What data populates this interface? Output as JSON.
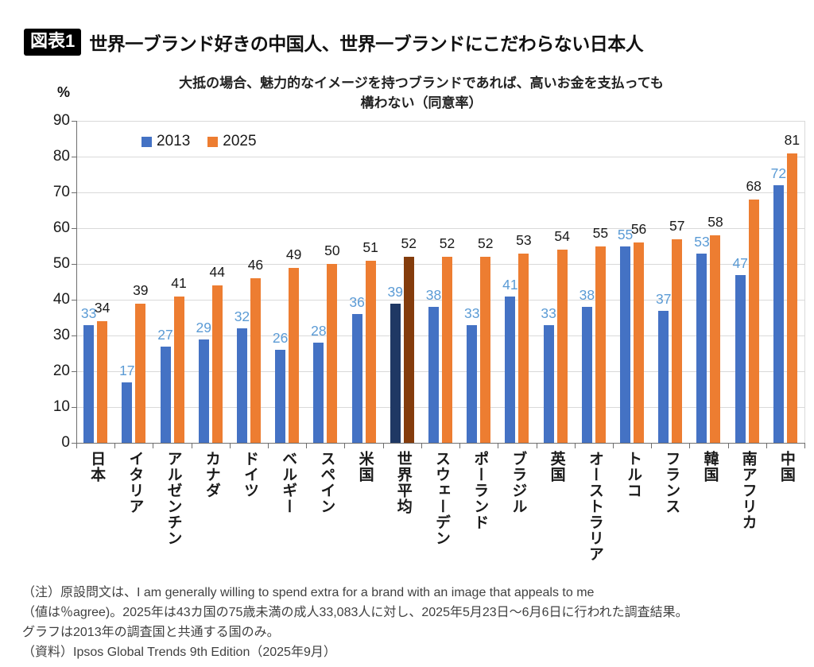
{
  "header": {
    "badge": "図表1",
    "title": "世界一ブランド好きの中国人、世界一ブランドにこだわらない日本人"
  },
  "chart_data": {
    "type": "bar",
    "title": "大抵の場合、魅力的なイメージを持つブランドであれば、高いお金を支払っても構わない（同意率）",
    "subtitle_lines": [
      "大抵の場合、魅力的なイメージを持つブランドであれば、高いお金を支払っても",
      "構わない（同意率）"
    ],
    "y_unit": "%",
    "ylim": [
      0,
      90
    ],
    "ytick_step": 10,
    "grid": true,
    "legend_position": "top-left",
    "categories": [
      "日本",
      "イタリア",
      "アルゼンチン",
      "カナダ",
      "ドイツ",
      "ベルギー",
      "スペイン",
      "米国",
      "世界平均",
      "スウェーデン",
      "ポーランド",
      "ブラジル",
      "英国",
      "オーストラリア",
      "トルコ",
      "フランス",
      "韓国",
      "南アフリカ",
      "中国"
    ],
    "series": [
      {
        "name": "2013",
        "color": "#4472C4",
        "label_color": "#5B9BD5",
        "values": [
          33,
          17,
          27,
          29,
          32,
          26,
          28,
          36,
          39,
          38,
          33,
          41,
          33,
          38,
          55,
          37,
          53,
          47,
          72
        ]
      },
      {
        "name": "2025",
        "color": "#ED7D31",
        "label_color": "#1a1a1a",
        "values": [
          34,
          39,
          41,
          44,
          46,
          49,
          50,
          51,
          52,
          52,
          52,
          53,
          54,
          55,
          56,
          57,
          58,
          68,
          81
        ]
      }
    ],
    "highlight": {
      "category": "世界平均",
      "index": 8,
      "colors": [
        "#1F3864",
        "#843C0C"
      ]
    }
  },
  "footnotes": [
    "（注）原設問文は、I am generally willing to spend extra for a brand with an image that appeals to me",
    "（値は％agree)。2025年は43カ国の75歳未満の成人33,083人に対し、2025年5月23日～6月6日に行われた調査結果。",
    "グラフは2013年の調査国と共通する国のみ。",
    "（資料）Ipsos Global Trends 9th Edition（2025年9月）"
  ]
}
